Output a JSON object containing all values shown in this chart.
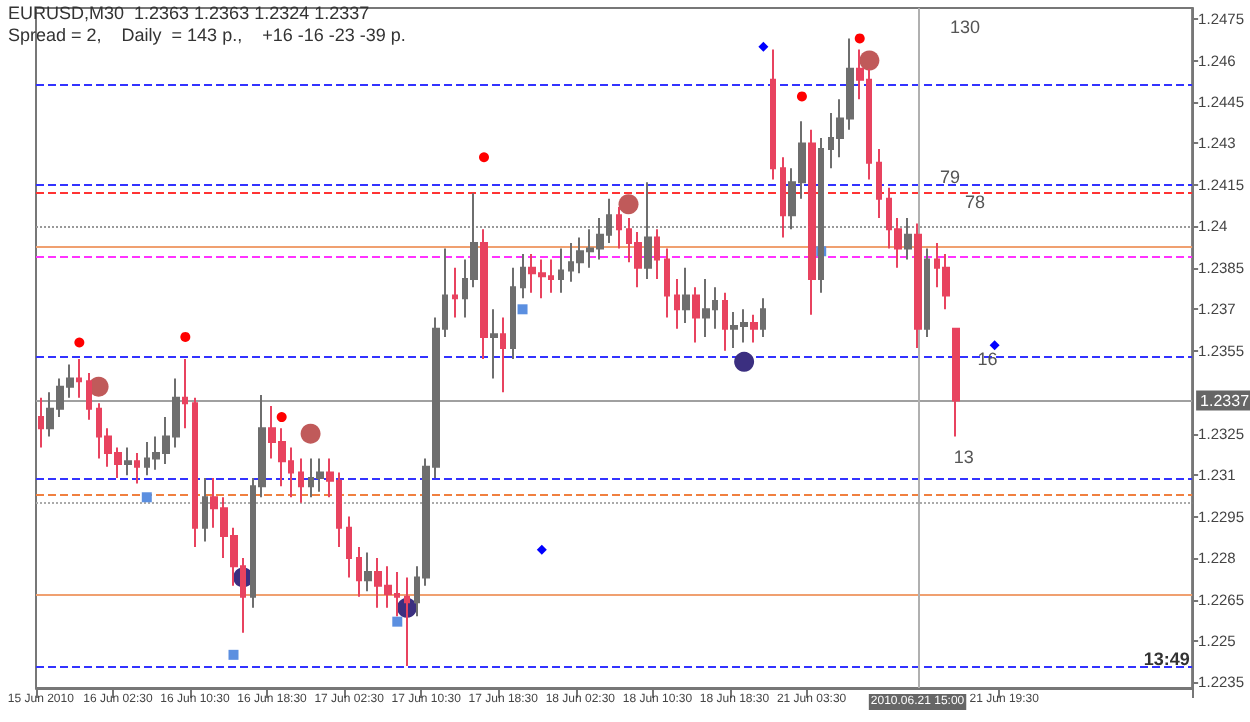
{
  "chart_data": {
    "type": "candlestick",
    "title": "EURUSD,M30  1.2363 1.2363 1.2324 1.2337",
    "subtitle": "Spread = 2,    Daily  = 143 p.,    +16 -16 -23 -39 p.",
    "categories": [
      "15 Jun 2010",
      null,
      null,
      null,
      null,
      null,
      null,
      null,
      "16 Jun 02:30",
      null,
      null,
      null,
      null,
      null,
      null,
      null,
      "16 Jun 10:30",
      null,
      null,
      null,
      null,
      null,
      null,
      null,
      "16 Jun 18:30",
      null,
      null,
      null,
      null,
      null,
      null,
      null,
      "17 Jun 02:30",
      null,
      null,
      null,
      null,
      null,
      null,
      null,
      "17 Jun 10:30",
      null,
      null,
      null,
      null,
      null,
      null,
      null,
      "17 Jun 18:30",
      null,
      null,
      null,
      null,
      null,
      null,
      null,
      "18 Jun 02:30",
      null,
      null,
      null,
      null,
      null,
      null,
      null,
      "18 Jun 10:30",
      null,
      null,
      null,
      null,
      null,
      null,
      null,
      "18 Jun 18:30",
      null,
      null,
      null,
      null,
      null,
      null,
      null,
      "21 Jun 03:30",
      null,
      null,
      null,
      null,
      null,
      null,
      null,
      null,
      null,
      null,
      "2010.06.21 15:00",
      null,
      null,
      null,
      null,
      null,
      null,
      null,
      null,
      "21 Jun 19:30",
      null,
      null,
      null,
      null,
      null,
      null,
      null,
      null,
      null,
      null,
      null,
      null,
      null,
      null,
      null,
      null,
      null,
      null,
      null
    ],
    "series": [
      {
        "colors": [
          "#e8435f",
          "#6e6e6e",
          "#6e6e6e",
          "#6e6e6e",
          "#e8435f",
          "#e8435f",
          "#e8435f",
          "#e8435f",
          "#e8435f",
          "#6e6e6e",
          "#e8435f",
          "#6e6e6e",
          "#6e6e6e",
          "#6e6e6e",
          "#6e6e6e",
          "#e8435f",
          "#e8435f",
          "#6e6e6e",
          "#e8435f",
          "#e8435f",
          "#e8435f",
          "#e8435f",
          "#6e6e6e",
          "#6e6e6e",
          "#e8435f",
          "#e8435f",
          "#e8435f",
          "#e8435f",
          "#6e6e6e",
          "#6e6e6e",
          "#e8435f",
          "#e8435f",
          "#e8435f",
          "#e8435f",
          "#6e6e6e",
          "#e8435f",
          "#e8435f",
          "#e8435f",
          "#e8435f",
          "#6e6e6e",
          "#6e6e6e",
          "#6e6e6e",
          "#6e6e6e",
          "#e8435f",
          "#6e6e6e",
          "#6e6e6e",
          "#e8435f",
          "#6e6e6e",
          "#e8435f",
          "#6e6e6e",
          "#6e6e6e",
          "#e8435f",
          "#e8435f",
          "#e8435f",
          "#6e6e6e",
          "#6e6e6e",
          "#6e6e6e",
          "#6e6e6e",
          "#6e6e6e",
          "#6e6e6e",
          "#e8435f",
          "#e8435f",
          "#e8435f",
          "#6e6e6e",
          "#e8435f",
          "#e8435f",
          "#e8435f",
          "#6e6e6e",
          "#e8435f",
          "#6e6e6e",
          "#6e6e6e",
          "#e8435f",
          "#6e6e6e",
          "#6e6e6e",
          "#e8435f",
          "#6e6e6e",
          "#e8435f",
          "#e8435f",
          "#6e6e6e",
          "#6e6e6e",
          "#e8435f",
          "#6e6e6e",
          "#6e6e6e",
          "#6e6e6e",
          "#6e6e6e",
          "#e8435f",
          "#e8435f",
          "#e8435f",
          "#e8435f",
          "#e8435f",
          "#6e6e6e",
          "#e8435f",
          "#6e6e6e",
          "#e8435f",
          "#e8435f",
          "#e8435f",
          null,
          null,
          null,
          null,
          null,
          null,
          null,
          null,
          null,
          null,
          null,
          null,
          null,
          null,
          null,
          null,
          null,
          null,
          null,
          null,
          null,
          null,
          null,
          null
        ],
        "ohlc": [
          [
            1.2331,
            1.2338,
            1.232,
            1.2327
          ],
          [
            1.2327,
            1.234,
            1.2324,
            1.2334
          ],
          [
            1.2334,
            1.2345,
            1.2331,
            1.2342
          ],
          [
            1.2342,
            1.235,
            1.2338,
            1.2345
          ],
          [
            1.2345,
            1.2352,
            1.2338,
            1.2344
          ],
          [
            1.2344,
            1.2347,
            1.233,
            1.2334
          ],
          [
            1.2334,
            1.2336,
            1.2316,
            1.2324
          ],
          [
            1.2324,
            1.2327,
            1.2313,
            1.2318
          ],
          [
            1.2318,
            1.232,
            1.2309,
            1.2314
          ],
          [
            1.2314,
            1.232,
            1.231,
            1.2315
          ],
          [
            1.2315,
            1.2318,
            1.2307,
            1.2313
          ],
          [
            1.2313,
            1.2322,
            1.231,
            1.2316
          ],
          [
            1.2316,
            1.2324,
            1.2312,
            1.2318
          ],
          [
            1.2318,
            1.2331,
            1.2314,
            1.2324
          ],
          [
            1.2324,
            1.2345,
            1.232,
            1.2338
          ],
          [
            1.2338,
            1.2352,
            1.2327,
            1.2336
          ],
          [
            1.2336,
            1.2338,
            1.2284,
            1.2291
          ],
          [
            1.2291,
            1.2309,
            1.2286,
            1.2302
          ],
          [
            1.2302,
            1.2309,
            1.2291,
            1.2298
          ],
          [
            1.2298,
            1.2302,
            1.228,
            1.2288
          ],
          [
            1.2288,
            1.2291,
            1.227,
            1.2277
          ],
          [
            1.2277,
            1.228,
            1.2253,
            1.2266
          ],
          [
            1.2266,
            1.2309,
            1.2262,
            1.2306
          ],
          [
            1.2306,
            1.2339,
            1.2302,
            1.2327
          ],
          [
            1.2327,
            1.2335,
            1.2316,
            1.2322
          ],
          [
            1.2322,
            1.2327,
            1.2306,
            1.2315
          ],
          [
            1.2315,
            1.232,
            1.2302,
            1.2311
          ],
          [
            1.2311,
            1.2316,
            1.23,
            1.2306
          ],
          [
            1.2306,
            1.2316,
            1.2302,
            1.2309
          ],
          [
            1.2309,
            1.2316,
            1.2304,
            1.2311
          ],
          [
            1.2311,
            1.2316,
            1.2302,
            1.2308
          ],
          [
            1.2308,
            1.2311,
            1.2284,
            1.2291
          ],
          [
            1.2291,
            1.2295,
            1.2273,
            1.228
          ],
          [
            1.228,
            1.2284,
            1.2266,
            1.2272
          ],
          [
            1.2272,
            1.2282,
            1.2268,
            1.2275
          ],
          [
            1.2275,
            1.228,
            1.2262,
            1.227
          ],
          [
            1.227,
            1.2277,
            1.2262,
            1.2267
          ],
          [
            1.2267,
            1.2275,
            1.2259,
            1.2266
          ],
          [
            1.2266,
            1.2273,
            1.2241,
            1.2264
          ],
          [
            1.2264,
            1.2277,
            1.2259,
            1.2273
          ],
          [
            1.2273,
            1.2316,
            1.227,
            1.2313
          ],
          [
            1.2313,
            1.2367,
            1.2309,
            1.2363
          ],
          [
            1.2363,
            1.2392,
            1.236,
            1.2375
          ],
          [
            1.2375,
            1.2385,
            1.2367,
            1.2374
          ],
          [
            1.2374,
            1.2388,
            1.2367,
            1.2381
          ],
          [
            1.2381,
            1.2412,
            1.2378,
            1.2394
          ],
          [
            1.2394,
            1.2399,
            1.2352,
            1.236
          ],
          [
            1.236,
            1.237,
            1.2345,
            1.2361
          ],
          [
            1.2361,
            1.2367,
            1.234,
            1.2356
          ],
          [
            1.2356,
            1.2385,
            1.2352,
            1.2378
          ],
          [
            1.2378,
            1.239,
            1.2374,
            1.2385
          ],
          [
            1.2385,
            1.239,
            1.2376,
            1.2383
          ],
          [
            1.2383,
            1.2388,
            1.2374,
            1.2382
          ],
          [
            1.2382,
            1.2388,
            1.2376,
            1.2381
          ],
          [
            1.2381,
            1.2392,
            1.2376,
            1.2384
          ],
          [
            1.2384,
            1.2394,
            1.238,
            1.2387
          ],
          [
            1.2387,
            1.2396,
            1.2383,
            1.2391
          ],
          [
            1.2391,
            1.2399,
            1.2385,
            1.2392
          ],
          [
            1.2392,
            1.2403,
            1.2388,
            1.2397
          ],
          [
            1.2397,
            1.241,
            1.2394,
            1.2404
          ],
          [
            1.2404,
            1.2407,
            1.2392,
            1.2399
          ],
          [
            1.2399,
            1.2403,
            1.2387,
            1.2394
          ],
          [
            1.2394,
            1.2398,
            1.2378,
            1.2385
          ],
          [
            1.2385,
            1.2416,
            1.2381,
            1.2396
          ],
          [
            1.2396,
            1.2399,
            1.2381,
            1.2388
          ],
          [
            1.2388,
            1.2392,
            1.2367,
            1.2375
          ],
          [
            1.2375,
            1.2381,
            1.2363,
            1.237
          ],
          [
            1.237,
            1.2385,
            1.2365,
            1.2375
          ],
          [
            1.2375,
            1.2378,
            1.2358,
            1.2367
          ],
          [
            1.2367,
            1.2381,
            1.236,
            1.237
          ],
          [
            1.237,
            1.2378,
            1.2363,
            1.2373
          ],
          [
            1.2373,
            1.2376,
            1.2355,
            1.2363
          ],
          [
            1.2363,
            1.2369,
            1.2356,
            1.2364
          ],
          [
            1.2364,
            1.237,
            1.2358,
            1.2365
          ],
          [
            1.2365,
            1.2368,
            1.2358,
            1.2363
          ],
          [
            1.2363,
            1.2374,
            1.236,
            1.237
          ],
          [
            1.2453,
            1.2464,
            1.2417,
            1.2421
          ],
          [
            1.2421,
            1.2425,
            1.2396,
            1.2404
          ],
          [
            1.2404,
            1.2421,
            1.2399,
            1.2416
          ],
          [
            1.2416,
            1.2438,
            1.241,
            1.243
          ],
          [
            1.243,
            1.2435,
            1.2368,
            1.2381
          ],
          [
            1.2381,
            1.2432,
            1.2376,
            1.2428
          ],
          [
            1.2428,
            1.2441,
            1.2421,
            1.2432
          ],
          [
            1.2432,
            1.2446,
            1.2425,
            1.2439
          ],
          [
            1.2439,
            1.2468,
            1.2435,
            1.2457
          ],
          [
            1.2457,
            1.2464,
            1.2446,
            1.2453
          ],
          [
            1.2453,
            1.2457,
            1.2417,
            1.2423
          ],
          [
            1.2423,
            1.2428,
            1.2403,
            1.241
          ],
          [
            1.241,
            1.2414,
            1.2392,
            1.2399
          ],
          [
            1.2399,
            1.2403,
            1.2385,
            1.2392
          ],
          [
            1.2392,
            1.2403,
            1.2388,
            1.2397
          ],
          [
            1.2397,
            1.2401,
            1.2356,
            1.2363
          ],
          [
            1.2363,
            1.2392,
            1.236,
            1.2388
          ],
          [
            1.2388,
            1.2394,
            1.2378,
            1.2385
          ],
          [
            1.2385,
            1.239,
            1.237,
            1.2375
          ],
          [
            1.2363,
            1.2363,
            1.2324,
            1.2337
          ],
          null,
          null,
          null,
          null,
          null,
          null,
          null,
          null,
          null,
          null,
          null,
          null,
          null,
          null,
          null,
          null,
          null,
          null,
          null,
          null,
          null,
          null,
          null,
          null
        ]
      },
      {
        "type": "scatter",
        "marker": "circle",
        "color": "#ff0000",
        "values": [
          null,
          null,
          null,
          null,
          1.2358,
          null,
          null,
          null,
          null,
          null,
          null,
          null,
          null,
          null,
          null,
          1.236,
          null,
          null,
          null,
          null,
          null,
          null,
          null,
          null,
          null,
          1.2331,
          null,
          null,
          null,
          null,
          null,
          null,
          null,
          null,
          null,
          null,
          null,
          null,
          null,
          null,
          null,
          null,
          null,
          null,
          null,
          null,
          1.2425,
          null,
          null,
          null,
          null,
          null,
          null,
          null,
          null,
          null,
          null,
          null,
          null,
          null,
          null,
          null,
          null,
          null,
          null,
          null,
          null,
          null,
          null,
          null,
          null,
          null,
          null,
          null,
          null,
          null,
          null,
          null,
          null,
          1.2447,
          null,
          null,
          null,
          null,
          null,
          1.2468,
          null,
          null,
          null,
          null,
          null,
          null,
          null,
          null,
          null,
          null,
          null,
          null,
          null,
          null,
          null,
          null,
          null,
          null,
          null,
          null,
          null,
          null,
          null,
          null,
          null,
          null,
          null,
          null,
          null,
          null,
          null,
          null,
          null,
          null
        ]
      },
      {
        "type": "scatter",
        "marker": "circle",
        "color": "#c05a5a",
        "values": [
          null,
          null,
          null,
          null,
          null,
          null,
          1.2342,
          null,
          null,
          null,
          null,
          null,
          null,
          null,
          null,
          null,
          null,
          null,
          null,
          null,
          null,
          null,
          null,
          null,
          null,
          null,
          null,
          null,
          1.2325,
          null,
          null,
          null,
          null,
          null,
          null,
          null,
          null,
          null,
          null,
          null,
          null,
          null,
          null,
          null,
          null,
          null,
          null,
          null,
          null,
          null,
          null,
          null,
          null,
          null,
          null,
          null,
          null,
          null,
          null,
          null,
          null,
          1.2408,
          null,
          null,
          null,
          null,
          null,
          null,
          null,
          null,
          null,
          null,
          null,
          null,
          null,
          null,
          null,
          null,
          null,
          null,
          null,
          null,
          null,
          null,
          null,
          null,
          1.246,
          null,
          null,
          null,
          null,
          null,
          null,
          null,
          null,
          null,
          null,
          null,
          null,
          null,
          null,
          null,
          null,
          null,
          null,
          null,
          null,
          null,
          null,
          null,
          null,
          null,
          null,
          null,
          null,
          null,
          null,
          null,
          null,
          null
        ]
      },
      {
        "type": "scatter",
        "marker": "circle",
        "color": "#3b2f80",
        "values": [
          null,
          null,
          null,
          null,
          null,
          null,
          null,
          null,
          null,
          null,
          null,
          null,
          null,
          null,
          null,
          null,
          null,
          null,
          null,
          null,
          null,
          1.2273,
          null,
          null,
          null,
          null,
          null,
          null,
          null,
          null,
          null,
          null,
          null,
          null,
          null,
          null,
          null,
          null,
          1.2262,
          null,
          null,
          null,
          null,
          null,
          null,
          null,
          null,
          null,
          null,
          null,
          null,
          null,
          null,
          null,
          null,
          null,
          null,
          null,
          null,
          null,
          null,
          null,
          null,
          null,
          null,
          null,
          null,
          null,
          null,
          null,
          null,
          null,
          null,
          1.2351,
          null,
          null,
          null,
          null,
          null,
          null,
          null,
          null,
          null,
          null,
          null,
          null,
          null,
          null,
          null,
          null,
          null,
          null,
          null,
          null,
          null,
          null,
          null,
          null,
          null,
          null,
          null,
          null,
          null,
          null,
          null,
          null,
          null,
          null,
          null,
          null,
          null,
          null,
          null,
          null,
          null,
          null,
          null,
          null,
          null,
          null
        ]
      },
      {
        "type": "scatter",
        "marker": "square",
        "color": "#5b8fe0",
        "values": [
          null,
          null,
          null,
          null,
          null,
          null,
          null,
          null,
          null,
          null,
          null,
          1.2302,
          null,
          null,
          null,
          null,
          null,
          null,
          null,
          null,
          1.2245,
          null,
          null,
          null,
          null,
          null,
          null,
          null,
          null,
          null,
          null,
          null,
          null,
          null,
          null,
          null,
          null,
          1.2257,
          null,
          null,
          null,
          null,
          null,
          null,
          null,
          null,
          null,
          null,
          null,
          null,
          1.237,
          null,
          null,
          null,
          null,
          null,
          null,
          null,
          null,
          null,
          null,
          null,
          null,
          null,
          null,
          null,
          null,
          null,
          null,
          null,
          null,
          null,
          null,
          null,
          null,
          null,
          null,
          null,
          null,
          null,
          null,
          1.2391,
          null,
          null,
          null,
          null,
          null,
          null,
          null,
          null,
          null,
          null,
          null,
          null,
          null,
          null,
          null,
          null,
          null,
          null,
          null,
          null,
          null,
          null,
          null,
          null,
          null,
          null,
          null,
          null,
          null,
          null,
          null,
          null,
          null,
          null,
          null,
          null,
          null,
          null
        ]
      },
      {
        "type": "scatter",
        "marker": "diamond",
        "color": "#0000ff",
        "values": [
          null,
          null,
          null,
          null,
          null,
          null,
          null,
          null,
          null,
          null,
          null,
          null,
          null,
          null,
          null,
          null,
          null,
          null,
          null,
          null,
          null,
          null,
          null,
          null,
          null,
          null,
          null,
          null,
          null,
          null,
          null,
          null,
          null,
          null,
          null,
          null,
          null,
          null,
          null,
          null,
          null,
          null,
          null,
          null,
          null,
          null,
          null,
          null,
          null,
          null,
          null,
          null,
          1.2283,
          null,
          null,
          null,
          null,
          null,
          null,
          null,
          null,
          null,
          null,
          null,
          null,
          null,
          null,
          null,
          null,
          null,
          null,
          null,
          null,
          null,
          null,
          1.2465,
          null,
          null,
          null,
          null,
          null,
          null,
          null,
          null,
          null,
          null,
          null,
          null,
          null,
          null,
          null,
          null,
          null,
          null,
          null,
          null,
          null,
          null,
          null,
          1.2357,
          null,
          null,
          null,
          null,
          null,
          null,
          null,
          null,
          null,
          null,
          null,
          null,
          null,
          null,
          null,
          null,
          null,
          null,
          null,
          null
        ]
      }
    ],
    "ylim": [
      1.2233,
      1.2479
    ],
    "yticks": [
      1.2475,
      1.246,
      1.2445,
      1.243,
      1.2415,
      1.24,
      1.2385,
      1.237,
      1.2355,
      1.2325,
      1.231,
      1.2295,
      1.228,
      1.2265,
      1.225,
      1.2235
    ],
    "ref_lines": [
      {
        "axis": "y",
        "value": 1.2451,
        "color": "#3333ff",
        "line_style": "dashed"
      },
      {
        "axis": "y",
        "value": 1.2415,
        "color": "#3333ff",
        "line_style": "dashed"
      },
      {
        "axis": "y",
        "value": 1.2412,
        "color": "#ff3333",
        "line_style": "dashed"
      },
      {
        "axis": "y",
        "value": 1.24,
        "color": "#999999",
        "line_style": "dotted"
      },
      {
        "axis": "y",
        "value": 1.2393,
        "color": "#f0a070",
        "line_style": "solid"
      },
      {
        "axis": "y",
        "value": 1.2389,
        "color": "#ff33ff",
        "line_style": "dashed"
      },
      {
        "axis": "y",
        "value": 1.2353,
        "color": "#3333ff",
        "line_style": "dashed"
      },
      {
        "axis": "y",
        "value": 1.2337,
        "color": "#a0a0a0",
        "line_style": "solid",
        "label": "1.2337"
      },
      {
        "axis": "y",
        "value": 1.2309,
        "color": "#3333ff",
        "line_style": "dashed"
      },
      {
        "axis": "y",
        "value": 1.2303,
        "color": "#f08040",
        "line_style": "dashed"
      },
      {
        "axis": "y",
        "value": 1.23,
        "color": "#aaaaaa",
        "line_style": "dotted"
      },
      {
        "axis": "y",
        "value": 1.2267,
        "color": "#f0a070",
        "line_style": "solid"
      },
      {
        "axis": "y",
        "value": 1.2241,
        "color": "#3333ff",
        "line_style": "dashed"
      },
      {
        "axis": "x",
        "value": "2010.06.21 15:00",
        "color": "#b0b0b0",
        "line_style": "solid"
      }
    ],
    "annotations": [
      "130",
      "79",
      "78",
      "16",
      "13",
      "13:49"
    ],
    "grid": false
  }
}
